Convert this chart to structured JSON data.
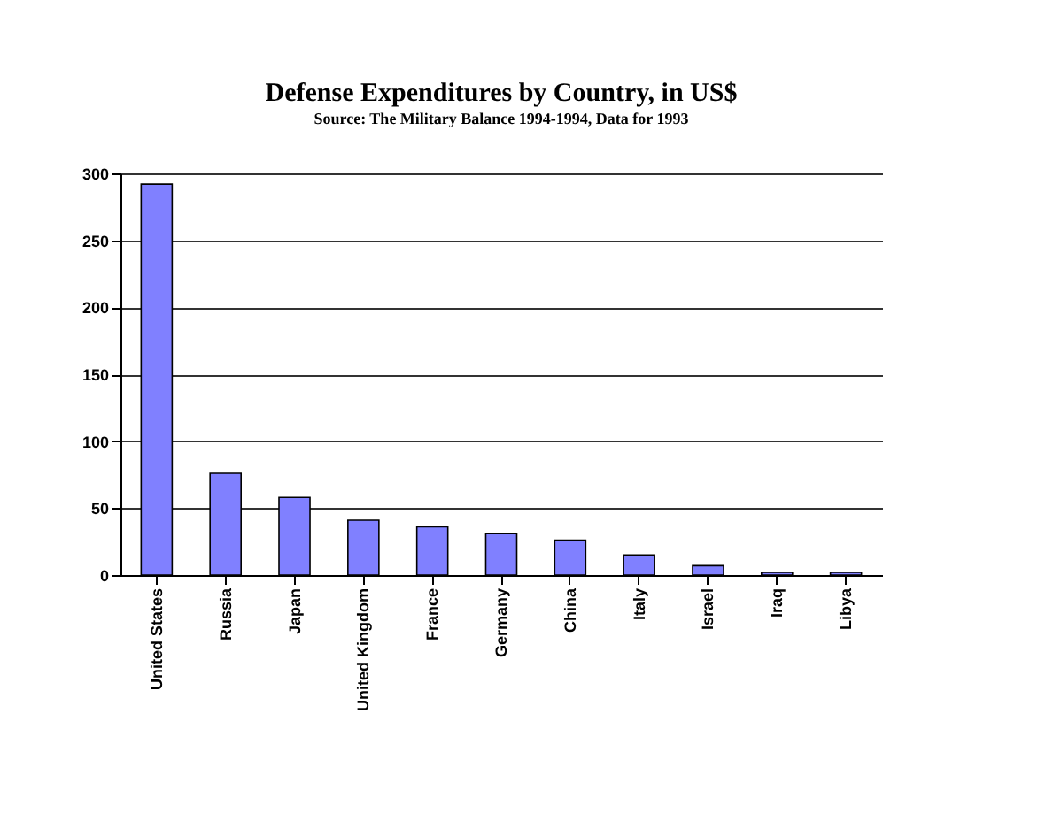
{
  "chart_data": {
    "type": "bar",
    "title": "Defense Expenditures by Country, in US$",
    "subtitle": "Source: The Military Balance 1994-1994,  Data for 1993",
    "categories": [
      "United States",
      "Russia",
      "Japan",
      "United Kingdom",
      "France",
      "Germany",
      "China",
      "Italy",
      "Israel",
      "Iraq",
      "Libya"
    ],
    "values": [
      292,
      76,
      58,
      41,
      36,
      31,
      26,
      15,
      7,
      2,
      2
    ],
    "color": "#8080ff",
    "ylim": [
      0,
      300
    ],
    "yticks": [
      0,
      50,
      100,
      150,
      200,
      250,
      300
    ],
    "grid": "y"
  }
}
